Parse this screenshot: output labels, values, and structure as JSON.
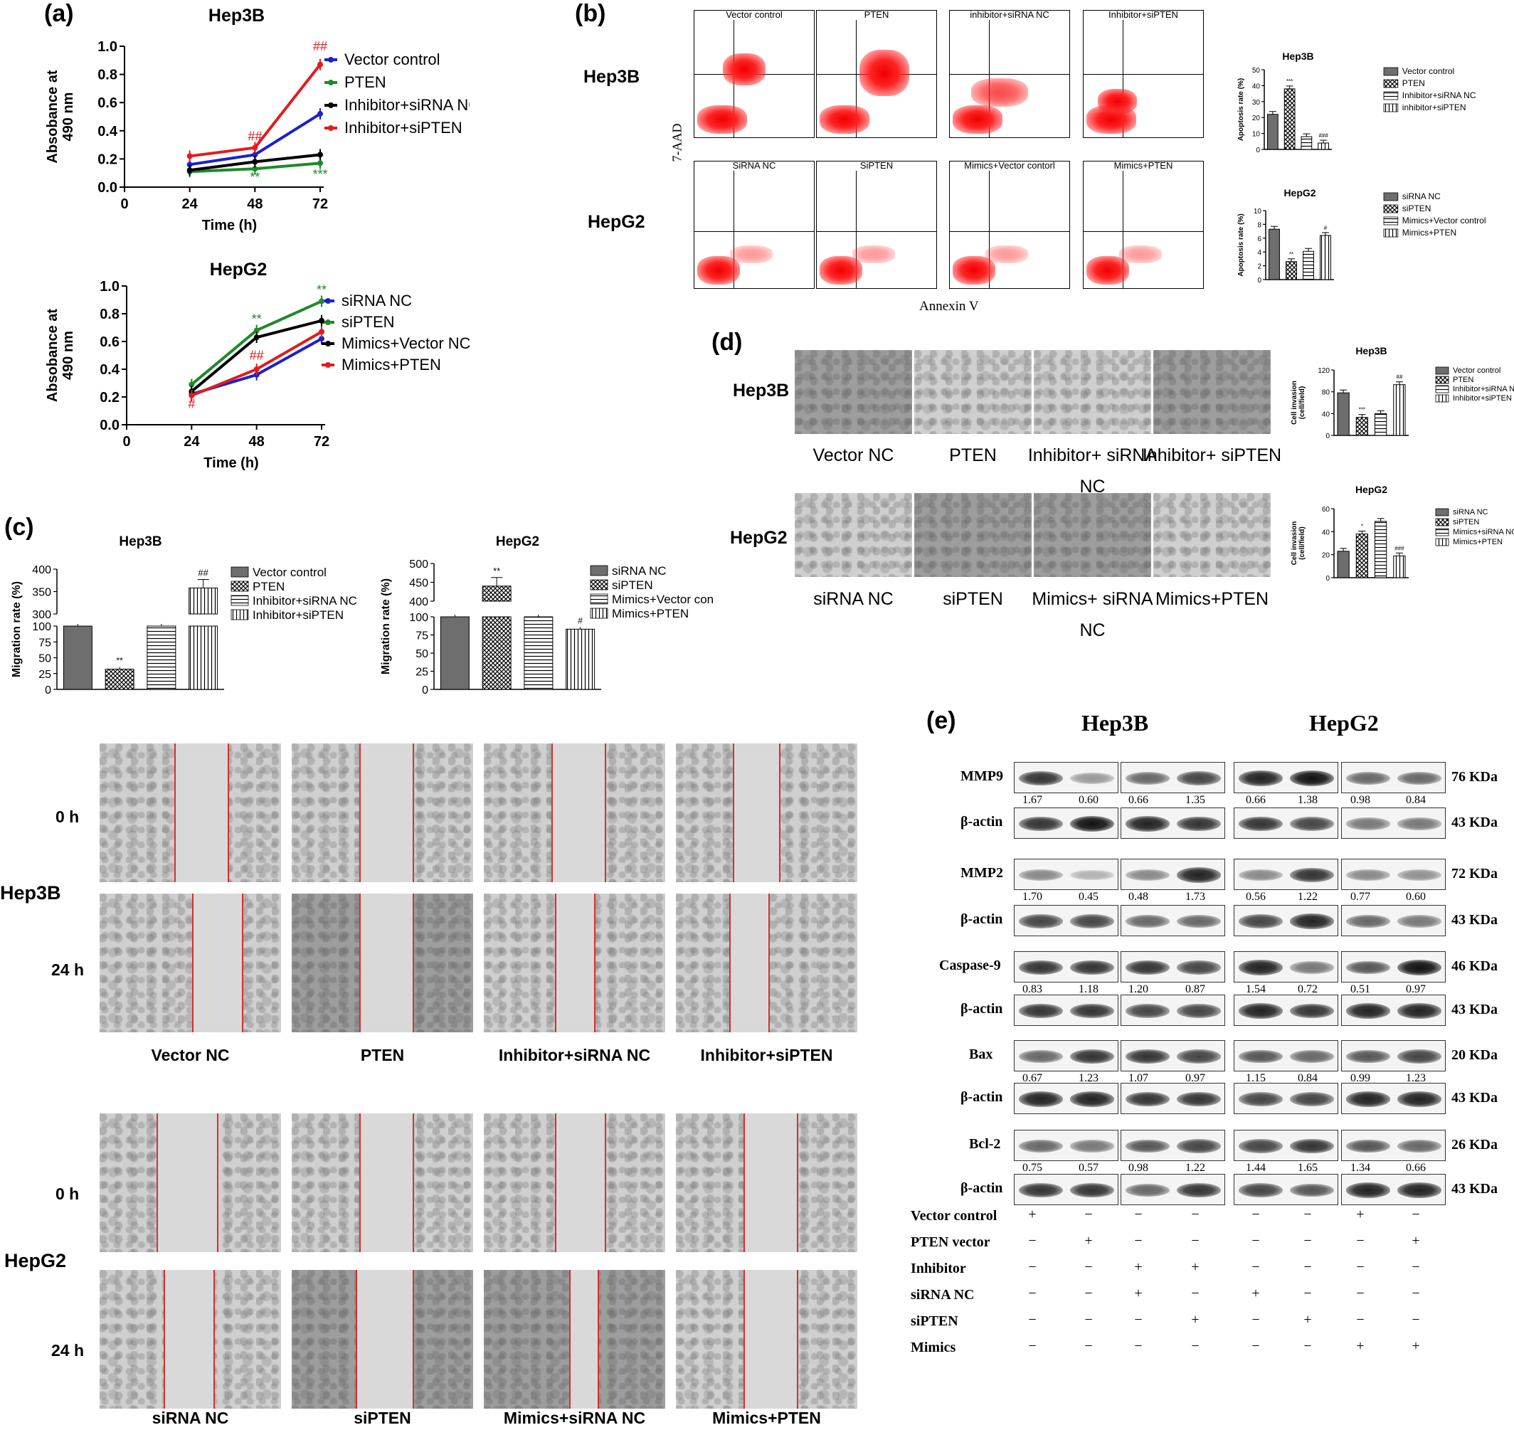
{
  "panels": {
    "a": "(a)",
    "b": "(b)",
    "c": "(c)",
    "d": "(d)",
    "e": "(e)"
  },
  "chart_data": [
    {
      "id": "a-hep3b",
      "type": "line",
      "title": "Hep3B",
      "xlabel": "Time (h)",
      "ylabel": "Absobance at 490 nm",
      "x": [
        24,
        48,
        72
      ],
      "xticks": [
        "0",
        "24",
        "48",
        "72"
      ],
      "yticks": [
        "0.0",
        "0.2",
        "0.4",
        "0.6",
        "0.8",
        "1.0"
      ],
      "xlim": [
        0,
        72
      ],
      "ylim": [
        0,
        1.0
      ],
      "series": [
        {
          "name": "Vector control",
          "color": "#1a22c8",
          "values": [
            0.16,
            0.23,
            0.52
          ]
        },
        {
          "name": "PTEN",
          "color": "#1e8a2a",
          "values": [
            0.11,
            0.13,
            0.17
          ]
        },
        {
          "name": "Inhibitor+siRNA NC",
          "color": "#000000",
          "values": [
            0.12,
            0.18,
            0.23
          ]
        },
        {
          "name": "Inhibitor+siPTEN",
          "color": "#e21c1c",
          "values": [
            0.22,
            0.28,
            0.87
          ]
        }
      ],
      "annotations": [
        {
          "text": "##",
          "x": 72,
          "y": 0.97,
          "color": "#e21c1c"
        },
        {
          "text": "##",
          "x": 48,
          "y": 0.33,
          "color": "#e21c1c"
        },
        {
          "text": "**",
          "x": 48,
          "y": 0.04,
          "color": "#1e8a2a"
        },
        {
          "text": "***",
          "x": 72,
          "y": 0.06,
          "color": "#1e8a2a"
        }
      ]
    },
    {
      "id": "a-hepg2",
      "type": "line",
      "title": "HepG2",
      "xlabel": "Time (h)",
      "ylabel": "Absobance at 490 nm",
      "x": [
        24,
        48,
        72
      ],
      "xticks": [
        "0",
        "24",
        "48",
        "72"
      ],
      "yticks": [
        "0.0",
        "0.2",
        "0.4",
        "0.6",
        "0.8",
        "1.0"
      ],
      "xlim": [
        0,
        72
      ],
      "ylim": [
        0,
        1.0
      ],
      "series": [
        {
          "name": "siRNA NC",
          "color": "#1a22c8",
          "values": [
            0.22,
            0.36,
            0.62
          ]
        },
        {
          "name": "siPTEN",
          "color": "#1e8a2a",
          "values": [
            0.29,
            0.68,
            0.89
          ]
        },
        {
          "name": "Mimics+Vector NC",
          "color": "#000000",
          "values": [
            0.24,
            0.63,
            0.75
          ]
        },
        {
          "name": "Mimics+PTEN",
          "color": "#e21c1c",
          "values": [
            0.21,
            0.4,
            0.67
          ]
        }
      ],
      "annotations": [
        {
          "text": "**",
          "x": 72,
          "y": 0.94,
          "color": "#1e8a2a"
        },
        {
          "text": "**",
          "x": 48,
          "y": 0.73,
          "color": "#1e8a2a"
        },
        {
          "text": "##",
          "x": 48,
          "y": 0.47,
          "color": "#e21c1c"
        },
        {
          "text": "#",
          "x": 24,
          "y": 0.12,
          "color": "#e21c1c"
        }
      ]
    },
    {
      "id": "b-hep3b",
      "type": "bar",
      "title": "Hep3B",
      "ylabel": "Apoptosis rate (%)",
      "yticks": [
        "0",
        "10",
        "20",
        "30",
        "40",
        "50"
      ],
      "ylim": [
        0,
        50
      ],
      "categories": [
        "Vector control",
        "PTEN",
        "Inhibitor+siRNA NC",
        "inhibitor+siPTEN"
      ],
      "values": [
        22,
        38,
        8,
        4
      ],
      "marks": [
        "",
        "***",
        "",
        "###"
      ]
    },
    {
      "id": "b-hepg2",
      "type": "bar",
      "title": "HepG2",
      "ylabel": "Apoptosis rate (%)",
      "yticks": [
        "0",
        "2",
        "4",
        "6",
        "8",
        "10"
      ],
      "ylim": [
        0,
        10
      ],
      "categories": [
        "siRNA NC",
        "siPTEN",
        "Mimics+Vector control",
        "Mimics+PTEN"
      ],
      "values": [
        7.3,
        2.6,
        4.1,
        6.4
      ],
      "marks": [
        "",
        "**",
        "",
        "#"
      ]
    },
    {
      "id": "c-hep3b",
      "type": "bar",
      "title": "Hep3B",
      "ylabel": "Migration rate (%)",
      "yticks": [
        "0",
        "25",
        "50",
        "75",
        "100",
        "300",
        "350",
        "400"
      ],
      "broken_axis": true,
      "categories": [
        "Vector control",
        "PTEN",
        "Inhibitor+siRNA NC",
        "Inhibitor+siPTEN"
      ],
      "values": [
        100,
        32,
        100,
        358
      ],
      "marks": [
        "",
        "**",
        "",
        "##"
      ]
    },
    {
      "id": "c-hepg2",
      "type": "bar",
      "title": "HepG2",
      "ylabel": "Migration rate (%)",
      "yticks": [
        "0",
        "25",
        "50",
        "75",
        "100",
        "400",
        "450",
        "500"
      ],
      "broken_axis": true,
      "categories": [
        "siRNA NC",
        "siPTEN",
        "Mimics+Vector con",
        "Mimics+PTEN"
      ],
      "values": [
        100,
        440,
        100,
        83
      ],
      "marks": [
        "",
        "**",
        "",
        "#"
      ]
    },
    {
      "id": "d-hep3b",
      "type": "bar",
      "title": "Hep3B",
      "ylabel": "Cell invasion (cell/field)",
      "yticks": [
        "0",
        "40",
        "80",
        "120"
      ],
      "ylim": [
        0,
        120
      ],
      "categories": [
        "Vector control",
        "PTEN",
        "Inhibitor+siRNA NC",
        "Inhibitor+siPTEN"
      ],
      "values": [
        78,
        33,
        40,
        93
      ],
      "marks": [
        "",
        "***",
        "",
        "##"
      ]
    },
    {
      "id": "d-hepg2",
      "type": "bar",
      "title": "HepG2",
      "ylabel": "Cell invasion (cell/field)",
      "yticks": [
        "0",
        "20",
        "40",
        "60"
      ],
      "ylim": [
        0,
        60
      ],
      "categories": [
        "siRNA NC",
        "siPTEN",
        "Mimics+siRNA NC",
        "Mimics+PTEN"
      ],
      "values": [
        23,
        38,
        49,
        19
      ],
      "marks": [
        "",
        "*",
        "",
        "###"
      ]
    }
  ],
  "flow": {
    "cell_lines": [
      "Hep3B",
      "HepG2"
    ],
    "y_label": "7-AAD",
    "x_label": "Annexin V",
    "hep3b_titles": [
      "Vector control",
      "PTEN",
      "inhibitor+siRNA NC",
      "Inhibitor+siPTEN"
    ],
    "hepg2_titles": [
      "SiRNA NC",
      "SiPTEN",
      "Mimics+Vector contorl",
      "Mimics+PTEN"
    ]
  },
  "invasion": {
    "cell_lines": [
      "Hep3B",
      "HepG2"
    ],
    "hep3b_labels": [
      "Vector NC",
      "PTEN",
      "Inhibitor+ siRNA NC",
      "Inhibitor+ siPTEN"
    ],
    "hepg2_labels": [
      "siRNA NC",
      "siPTEN",
      "Mimics+ siRNA NC",
      "Mimics+PTEN"
    ]
  },
  "wound": {
    "hep3b": {
      "cell": "Hep3B",
      "times": [
        "0 h",
        "24 h"
      ],
      "labels": [
        "Vector NC",
        "PTEN",
        "Inhibitor+siRNA NC",
        "Inhibitor+siPTEN"
      ]
    },
    "hepg2": {
      "cell": "HepG2",
      "times": [
        "0 h",
        "24 h"
      ],
      "labels": [
        "siRNA NC",
        "siPTEN",
        "Mimics+siRNA NC",
        "Mimics+PTEN"
      ]
    }
  },
  "western": {
    "headers": [
      "Hep3B",
      "HepG2"
    ],
    "rows": [
      {
        "label": "MMP9",
        "kda": "76 KDa",
        "nums": [
          "1.67",
          "0.60",
          "0.66",
          "1.35",
          "0.66",
          "1.38",
          "0.98",
          "0.84"
        ]
      },
      {
        "label": "β-actin",
        "kda": "43 KDa",
        "nums": []
      },
      {
        "label": "MMP2",
        "kda": "72 KDa",
        "nums": [
          "1.70",
          "0.45",
          "0.48",
          "1.73",
          "0.56",
          "1.22",
          "0.77",
          "0.60"
        ]
      },
      {
        "label": "β-actin",
        "kda": "43 KDa",
        "nums": []
      },
      {
        "label": "Caspase-9",
        "kda": "46 KDa",
        "nums": [
          "0.83",
          "1.18",
          "1.20",
          "0.87",
          "1.54",
          "0.72",
          "0.51",
          "0.97"
        ]
      },
      {
        "label": "β-actin",
        "kda": "43 KDa",
        "nums": []
      },
      {
        "label": "Bax",
        "kda": "20 KDa",
        "nums": [
          "0.67",
          "1.23",
          "1.07",
          "0.97",
          "1.15",
          "0.84",
          "0.99",
          "1.23"
        ]
      },
      {
        "label": "β-actin",
        "kda": "43 KDa",
        "nums": []
      },
      {
        "label": "Bcl-2",
        "kda": "26 KDa",
        "nums": [
          "0.75",
          "0.57",
          "0.98",
          "1.22",
          "1.44",
          "1.65",
          "1.34",
          "0.66"
        ]
      },
      {
        "label": "β-actin",
        "kda": "43 KDa",
        "nums": []
      }
    ],
    "treatments": [
      {
        "label": "Vector control",
        "signs": [
          "+",
          "−",
          "−",
          "−",
          "−",
          "−",
          "+",
          "−"
        ]
      },
      {
        "label": "PTEN vector",
        "signs": [
          "−",
          "+",
          "−",
          "−",
          "−",
          "−",
          "−",
          "+"
        ]
      },
      {
        "label": "Inhibitor",
        "signs": [
          "−",
          "−",
          "+",
          "+",
          "−",
          "−",
          "−",
          "−"
        ]
      },
      {
        "label": "siRNA NC",
        "signs": [
          "−",
          "−",
          "+",
          "−",
          "+",
          "−",
          "−",
          "−"
        ]
      },
      {
        "label": "siPTEN",
        "signs": [
          "−",
          "−",
          "−",
          "+",
          "−",
          "+",
          "−",
          "−"
        ]
      },
      {
        "label": "Mimics",
        "signs": [
          "−",
          "−",
          "−",
          "−",
          "−",
          "−",
          "+",
          "+"
        ]
      }
    ]
  }
}
